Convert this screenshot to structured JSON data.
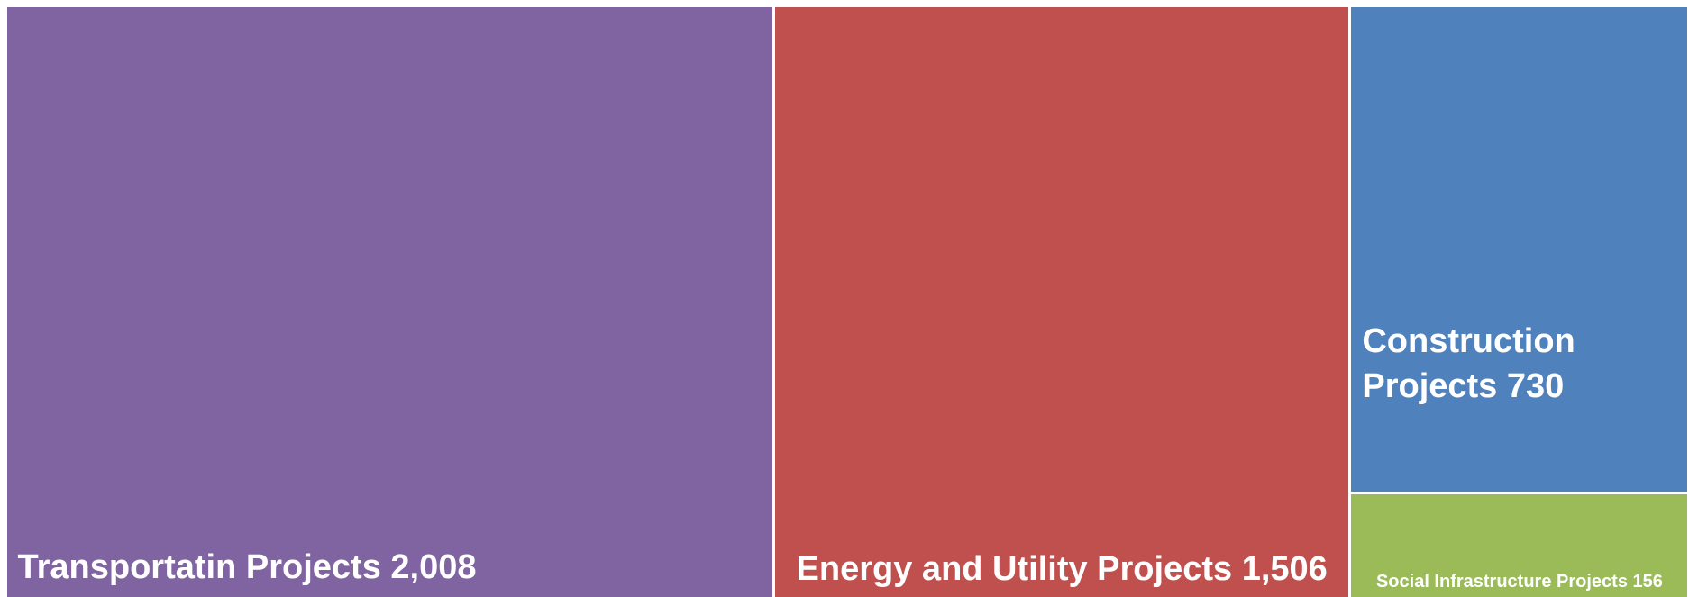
{
  "chart_data": {
    "type": "treemap",
    "categories": [
      "Transportatin Projects",
      "Energy and Utility Projects",
      "Construction Projects",
      "Social Infrastructure Projects"
    ],
    "values": [
      2008,
      1506,
      730,
      156
    ],
    "value_labels": [
      "2,008",
      "1,506",
      "730",
      "156"
    ],
    "colors": [
      "#8064a2",
      "#c0504d",
      "#4f81bd",
      "#9bbb59"
    ]
  }
}
